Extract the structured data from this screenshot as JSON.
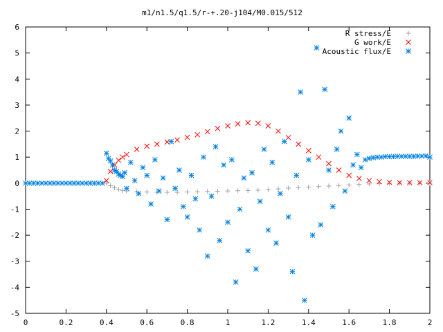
{
  "chart_data": {
    "type": "scatter",
    "title": "m1/n1.5/q1.5/r-+.20-j104/M0.015/512",
    "xlabel": "",
    "ylabel": "",
    "xlim": [
      0,
      2
    ],
    "ylim": [
      -5,
      6
    ],
    "xticks": [
      0,
      0.2,
      0.4,
      0.6,
      0.8,
      1,
      1.2,
      1.4,
      1.6,
      1.8,
      2
    ],
    "xtick_labels": [
      "0",
      "0.2",
      "0.4",
      "0.6",
      "0.8",
      "1",
      "1.2",
      "1.4",
      "1.6",
      "1.8",
      "2"
    ],
    "yticks": [
      -5,
      -4,
      -3,
      -2,
      -1,
      0,
      1,
      2,
      3,
      4,
      5,
      6
    ],
    "ytick_labels": [
      "-5",
      "-4",
      "-3",
      "-2",
      "-1",
      "0",
      "1",
      "2",
      "3",
      "4",
      "5",
      "6"
    ],
    "grid": false,
    "legend_position": "top-right",
    "series": [
      {
        "name": "R stress/E",
        "marker": "plus",
        "color": "#a0a0a0",
        "x": [
          0.4,
          0.42,
          0.44,
          0.46,
          0.48,
          0.5,
          0.55,
          0.6,
          0.65,
          0.7,
          0.75,
          0.8,
          0.85,
          0.9,
          0.95,
          1.0,
          1.05,
          1.1,
          1.15,
          1.2,
          1.25,
          1.3,
          1.35,
          1.4,
          1.45,
          1.5,
          1.55,
          1.6,
          1.65,
          1.7,
          1.75,
          1.8,
          1.85,
          1.9,
          1.95,
          2.0
        ],
        "y": [
          0.0,
          -0.1,
          -0.18,
          -0.24,
          -0.28,
          -0.3,
          -0.33,
          -0.34,
          -0.35,
          -0.35,
          -0.35,
          -0.34,
          -0.33,
          -0.32,
          -0.31,
          -0.3,
          -0.29,
          -0.28,
          -0.27,
          -0.25,
          -0.22,
          -0.19,
          -0.17,
          -0.15,
          -0.13,
          -0.11,
          -0.09,
          -0.07,
          -0.05,
          -0.03,
          -0.02,
          -0.01,
          0.0,
          0.0,
          0.0,
          0.0
        ]
      },
      {
        "name": "G work/E",
        "marker": "cross",
        "color": "#ff0000",
        "x": [
          0.4,
          0.42,
          0.44,
          0.46,
          0.48,
          0.5,
          0.55,
          0.6,
          0.65,
          0.7,
          0.75,
          0.8,
          0.85,
          0.9,
          0.95,
          1.0,
          1.05,
          1.1,
          1.15,
          1.2,
          1.25,
          1.3,
          1.35,
          1.4,
          1.45,
          1.5,
          1.55,
          1.6,
          1.65,
          1.7,
          1.75,
          1.8,
          1.85,
          1.9,
          1.95,
          2.0
        ],
        "y": [
          0.1,
          0.45,
          0.7,
          0.88,
          1.0,
          1.1,
          1.3,
          1.42,
          1.5,
          1.58,
          1.66,
          1.76,
          1.86,
          1.98,
          2.1,
          2.2,
          2.28,
          2.32,
          2.3,
          2.2,
          2.0,
          1.75,
          1.5,
          1.25,
          1.0,
          0.75,
          0.5,
          0.3,
          0.18,
          0.1,
          0.06,
          0.03,
          0.02,
          0.02,
          0.02,
          0.02
        ]
      },
      {
        "name": "Acoustic flux/E",
        "marker": "star",
        "color": "#0080e0",
        "x": [
          0.0,
          0.02,
          0.04,
          0.06,
          0.08,
          0.1,
          0.12,
          0.14,
          0.16,
          0.18,
          0.2,
          0.22,
          0.24,
          0.26,
          0.28,
          0.3,
          0.32,
          0.34,
          0.36,
          0.38,
          0.4,
          0.41,
          0.42,
          0.43,
          0.44,
          0.45,
          0.46,
          0.47,
          0.48,
          0.49,
          0.5,
          0.52,
          0.54,
          0.56,
          0.58,
          0.6,
          0.62,
          0.64,
          0.66,
          0.68,
          0.7,
          0.72,
          0.74,
          0.76,
          0.78,
          0.8,
          0.82,
          0.84,
          0.86,
          0.88,
          0.9,
          0.92,
          0.94,
          0.96,
          0.98,
          1.0,
          1.02,
          1.04,
          1.06,
          1.08,
          1.1,
          1.12,
          1.14,
          1.16,
          1.18,
          1.2,
          1.22,
          1.24,
          1.26,
          1.28,
          1.3,
          1.32,
          1.34,
          1.36,
          1.38,
          1.4,
          1.42,
          1.44,
          1.46,
          1.48,
          1.5,
          1.52,
          1.54,
          1.56,
          1.58,
          1.6,
          1.62,
          1.64,
          1.66,
          1.68,
          1.7,
          1.72,
          1.74,
          1.76,
          1.78,
          1.8,
          1.82,
          1.84,
          1.86,
          1.88,
          1.9,
          1.92,
          1.94,
          1.96,
          1.98,
          2.0
        ],
        "y": [
          0.0,
          0.0,
          0.0,
          0.0,
          0.0,
          0.0,
          0.0,
          0.0,
          0.0,
          0.0,
          0.0,
          0.0,
          0.0,
          0.0,
          0.0,
          0.0,
          0.0,
          0.0,
          0.0,
          0.0,
          1.15,
          0.95,
          0.85,
          0.7,
          0.5,
          0.45,
          0.35,
          0.3,
          0.25,
          0.4,
          -0.2,
          0.8,
          0.1,
          -0.4,
          0.6,
          0.3,
          -0.8,
          0.9,
          -0.3,
          0.2,
          -1.4,
          1.6,
          -0.2,
          0.5,
          -0.9,
          -1.3,
          0.3,
          -0.6,
          -1.8,
          1.0,
          -2.8,
          -0.5,
          1.4,
          -2.2,
          0.7,
          -1.5,
          0.9,
          -3.8,
          -1.0,
          0.2,
          -2.6,
          0.4,
          -3.3,
          -0.7,
          1.3,
          -1.8,
          0.8,
          -2.3,
          -0.4,
          1.6,
          -1.3,
          -3.4,
          0.3,
          3.5,
          -4.5,
          0.9,
          -2.0,
          5.2,
          -1.6,
          3.6,
          0.5,
          -0.9,
          1.3,
          2.0,
          -0.3,
          2.5,
          0.7,
          1.1,
          0.6,
          0.9,
          0.95,
          0.98,
          1.0,
          1.0,
          1.02,
          1.02,
          1.02,
          1.03,
          1.03,
          1.03,
          1.03,
          1.03,
          1.04,
          1.04,
          1.05,
          1.0
        ]
      }
    ]
  }
}
